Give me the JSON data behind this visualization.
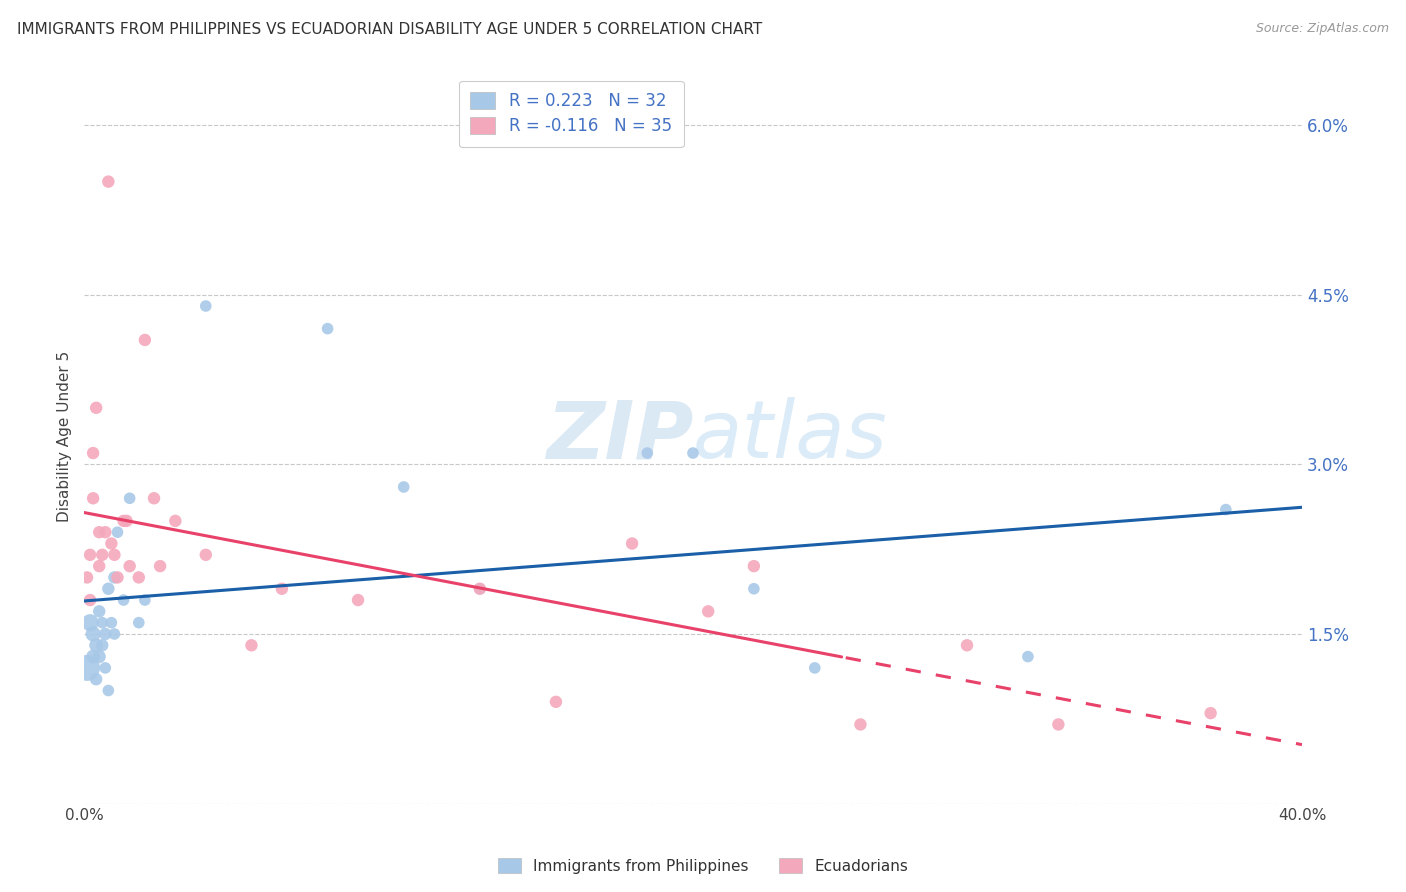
{
  "title": "IMMIGRANTS FROM PHILIPPINES VS ECUADORIAN DISABILITY AGE UNDER 5 CORRELATION CHART",
  "source": "Source: ZipAtlas.com",
  "ylabel": "Disability Age Under 5",
  "legend_label_blue": "Immigrants from Philippines",
  "legend_label_pink": "Ecuadorians",
  "R_blue": 0.223,
  "N_blue": 32,
  "R_pink": -0.116,
  "N_pink": 35,
  "xlim": [
    0.0,
    0.4
  ],
  "ylim": [
    0.0,
    0.065
  ],
  "blue_x": [
    0.001,
    0.002,
    0.003,
    0.003,
    0.004,
    0.004,
    0.005,
    0.005,
    0.006,
    0.006,
    0.007,
    0.007,
    0.008,
    0.008,
    0.009,
    0.01,
    0.01,
    0.011,
    0.013,
    0.015,
    0.018,
    0.02,
    0.04,
    0.08,
    0.105,
    0.13,
    0.185,
    0.2,
    0.22,
    0.24,
    0.31,
    0.375
  ],
  "blue_y": [
    0.012,
    0.016,
    0.013,
    0.015,
    0.011,
    0.014,
    0.017,
    0.013,
    0.016,
    0.014,
    0.012,
    0.015,
    0.01,
    0.019,
    0.016,
    0.02,
    0.015,
    0.024,
    0.018,
    0.027,
    0.016,
    0.018,
    0.044,
    0.042,
    0.028,
    0.019,
    0.031,
    0.031,
    0.019,
    0.012,
    0.013,
    0.026
  ],
  "blue_s": [
    350,
    150,
    100,
    120,
    80,
    100,
    80,
    90,
    70,
    80,
    70,
    80,
    70,
    80,
    70,
    80,
    70,
    70,
    70,
    70,
    70,
    70,
    70,
    70,
    70,
    70,
    70,
    70,
    70,
    70,
    70,
    70
  ],
  "pink_x": [
    0.001,
    0.002,
    0.002,
    0.003,
    0.003,
    0.004,
    0.005,
    0.005,
    0.006,
    0.007,
    0.008,
    0.009,
    0.01,
    0.011,
    0.013,
    0.014,
    0.015,
    0.018,
    0.02,
    0.023,
    0.025,
    0.03,
    0.04,
    0.055,
    0.065,
    0.09,
    0.13,
    0.155,
    0.18,
    0.205,
    0.22,
    0.255,
    0.29,
    0.32,
    0.37
  ],
  "pink_y": [
    0.02,
    0.018,
    0.022,
    0.027,
    0.031,
    0.035,
    0.021,
    0.024,
    0.022,
    0.024,
    0.055,
    0.023,
    0.022,
    0.02,
    0.025,
    0.025,
    0.021,
    0.02,
    0.041,
    0.027,
    0.021,
    0.025,
    0.022,
    0.014,
    0.019,
    0.018,
    0.019,
    0.009,
    0.023,
    0.017,
    0.021,
    0.007,
    0.014,
    0.007,
    0.008
  ],
  "pink_s": [
    80,
    80,
    80,
    80,
    80,
    80,
    80,
    80,
    80,
    80,
    80,
    80,
    80,
    80,
    80,
    80,
    80,
    80,
    80,
    80,
    80,
    80,
    80,
    80,
    80,
    80,
    80,
    80,
    80,
    80,
    80,
    80,
    80,
    80,
    80
  ],
  "blue_color": "#a8c8e8",
  "pink_color": "#f4a8bc",
  "blue_line_color": "#1a5fa8",
  "pink_line_color": "#e8426a",
  "background_color": "#ffffff",
  "grid_color": "#c8c8c8",
  "title_fontsize": 11,
  "axis_label_color": "#4472c4",
  "tick_label_color_right": "#4472c4",
  "watermark": "ZIPatlas",
  "watermark_color": "#cce0f0"
}
